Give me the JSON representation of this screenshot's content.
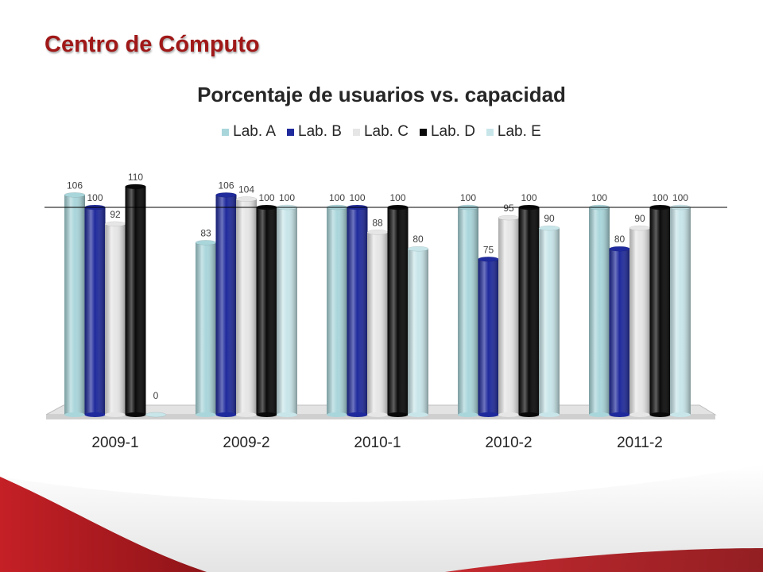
{
  "slide": {
    "title": "Centro de Cómputo"
  },
  "colors": {
    "title": "#a01818",
    "Lab. A": "#a9d6db",
    "Lab. B": "#1f2a9c",
    "Lab. C": "#e6e6e6",
    "Lab. D": "#0a0a0a",
    "Lab. E": "#c8e6ea",
    "decor_red": "#b41e23"
  },
  "chart_data": {
    "type": "bar",
    "title": "Porcentaje de usuarios vs. capacidad",
    "categories": [
      "2009-1",
      "2009-2",
      "2010-1",
      "2010-2",
      "2011-2"
    ],
    "series": [
      {
        "name": "Lab. A",
        "values": [
          106,
          83,
          100,
          100,
          100
        ]
      },
      {
        "name": "Lab. B",
        "values": [
          100,
          106,
          100,
          75,
          80
        ]
      },
      {
        "name": "Lab. C",
        "values": [
          92,
          104,
          88,
          95,
          90
        ]
      },
      {
        "name": "Lab. D",
        "values": [
          110,
          100,
          100,
          100,
          100
        ]
      },
      {
        "name": "Lab. E",
        "values": [
          0,
          100,
          80,
          90,
          100
        ]
      }
    ],
    "ylim": [
      0,
      110
    ],
    "reference_line": 100,
    "legend_position": "top",
    "grid": false,
    "xlabel": "",
    "ylabel": ""
  }
}
